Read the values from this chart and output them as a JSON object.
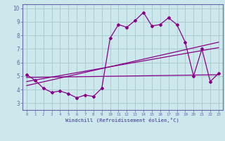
{
  "title": "",
  "xlabel": "Windchill (Refroidissement éolien,°C)",
  "bg_color": "#cce8ec",
  "grid_color": "#aaccd0",
  "line_color": "#880088",
  "spine_color": "#6666aa",
  "tick_color": "#6666aa",
  "x_ticks": [
    0,
    1,
    2,
    3,
    4,
    5,
    6,
    7,
    8,
    9,
    10,
    11,
    12,
    13,
    14,
    15,
    16,
    17,
    18,
    19,
    20,
    21,
    22,
    23
  ],
  "y_ticks": [
    3,
    4,
    5,
    6,
    7,
    8,
    9,
    10
  ],
  "ylim": [
    2.5,
    10.3
  ],
  "xlim": [
    -0.5,
    23.5
  ],
  "jagged_x": [
    0,
    1,
    2,
    3,
    4,
    5,
    6,
    7,
    8,
    9,
    10,
    11,
    12,
    13,
    14,
    15,
    16,
    17,
    18,
    19,
    20,
    21,
    22,
    23
  ],
  "jagged_y": [
    5.1,
    4.7,
    4.1,
    3.8,
    3.9,
    3.7,
    3.4,
    3.6,
    3.5,
    4.1,
    7.8,
    8.8,
    8.6,
    9.1,
    9.7,
    8.7,
    8.8,
    9.3,
    8.8,
    7.5,
    5.0,
    7.0,
    4.6,
    5.2
  ],
  "line1_x": [
    0,
    23
  ],
  "line1_y": [
    4.3,
    7.5
  ],
  "line2_x": [
    0,
    23
  ],
  "line2_y": [
    4.6,
    7.1
  ],
  "line3_x": [
    0,
    23
  ],
  "line3_y": [
    4.9,
    5.1
  ]
}
